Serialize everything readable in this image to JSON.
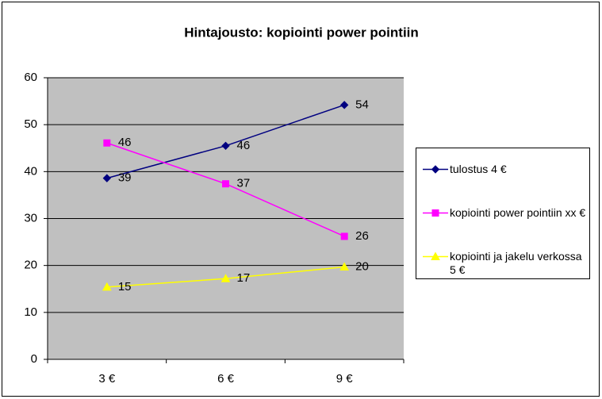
{
  "chart_data": {
    "type": "line",
    "title": "Hintajousto: kopiointi power pointiin",
    "categories": [
      "3 €",
      "6 €",
      "9 €"
    ],
    "series": [
      {
        "name": "tulostus 4 €",
        "color": "#000080",
        "marker": "diamond",
        "values": [
          38.6,
          45.5,
          54.2
        ],
        "value_labels": [
          "39",
          "46",
          "54"
        ]
      },
      {
        "name": "kopiointi power pointiin xx €",
        "color": "#ff00ff",
        "marker": "square",
        "values": [
          46.1,
          37.4,
          26.2
        ],
        "value_labels": [
          "46",
          "37",
          "26"
        ]
      },
      {
        "name": "kopiointi ja jakelu verkossa 5 €",
        "color": "#ffff00",
        "marker": "triangle",
        "values": [
          15.4,
          17.2,
          19.7
        ],
        "value_labels": [
          "15",
          "17",
          "20"
        ]
      }
    ],
    "ylim": [
      0,
      60
    ],
    "yticks": [
      0,
      10,
      20,
      30,
      40,
      50,
      60
    ],
    "grid": true,
    "legend": "right"
  }
}
